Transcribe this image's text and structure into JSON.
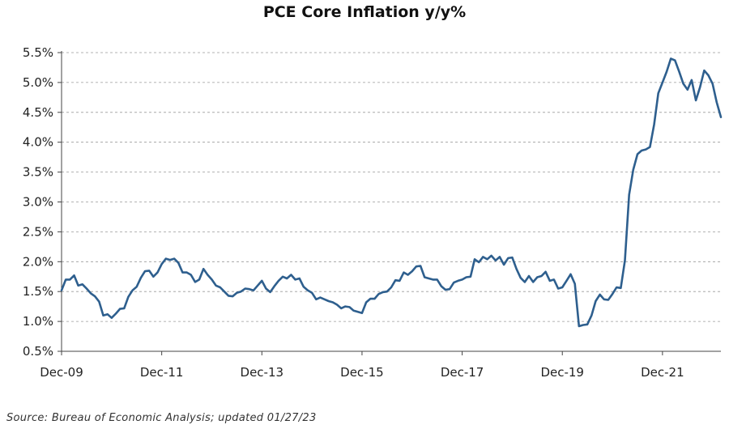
{
  "chart_data": {
    "type": "line",
    "title": "PCE Core Inflation y/y%",
    "source": "Source: Bureau of Economic Analysis; updated 01/27/23",
    "ylim": [
      0.5,
      5.5
    ],
    "yticks": [
      "0.5%",
      "1.0%",
      "1.5%",
      "2.0%",
      "2.5%",
      "3.0%",
      "3.5%",
      "4.0%",
      "4.5%",
      "5.0%",
      "5.5%"
    ],
    "xticks": [
      "Dec-09",
      "Dec-11",
      "Dec-13",
      "Dec-15",
      "Dec-17",
      "Dec-19",
      "Dec-21"
    ],
    "grid": "horizontal dashed",
    "line_color": "#2e5f8e",
    "series": [
      {
        "start": "Dec-09",
        "frequency": "monthly",
        "values": [
          1.52,
          1.7,
          1.7,
          1.77,
          1.6,
          1.62,
          1.55,
          1.47,
          1.42,
          1.33,
          1.1,
          1.12,
          1.06,
          1.13,
          1.21,
          1.22,
          1.41,
          1.52,
          1.58,
          1.73,
          1.84,
          1.85,
          1.75,
          1.82,
          1.96,
          2.05,
          2.03,
          2.05,
          1.98,
          1.82,
          1.82,
          1.78,
          1.66,
          1.7,
          1.88,
          1.78,
          1.7,
          1.6,
          1.57,
          1.5,
          1.43,
          1.42,
          1.48,
          1.5,
          1.55,
          1.54,
          1.52,
          1.6,
          1.68,
          1.55,
          1.49,
          1.59,
          1.68,
          1.75,
          1.72,
          1.78,
          1.7,
          1.72,
          1.58,
          1.52,
          1.48,
          1.37,
          1.4,
          1.37,
          1.34,
          1.32,
          1.28,
          1.22,
          1.25,
          1.24,
          1.18,
          1.16,
          1.14,
          1.32,
          1.38,
          1.38,
          1.46,
          1.49,
          1.5,
          1.57,
          1.69,
          1.68,
          1.82,
          1.78,
          1.84,
          1.92,
          1.93,
          1.74,
          1.72,
          1.7,
          1.7,
          1.59,
          1.53,
          1.54,
          1.65,
          1.68,
          1.7,
          1.74,
          1.75,
          2.04,
          1.99,
          2.08,
          2.04,
          2.1,
          2.02,
          2.08,
          1.95,
          2.06,
          2.07,
          1.88,
          1.73,
          1.66,
          1.76,
          1.66,
          1.74,
          1.76,
          1.83,
          1.68,
          1.7,
          1.55,
          1.57,
          1.68,
          1.79,
          1.63,
          0.92,
          0.94,
          0.95,
          1.1,
          1.34,
          1.45,
          1.37,
          1.36,
          1.46,
          1.57,
          1.56,
          2.02,
          3.12,
          3.54,
          3.8,
          3.86,
          3.88,
          3.92,
          4.3,
          4.82,
          5.0,
          5.18,
          5.4,
          5.37,
          5.18,
          4.98,
          4.88,
          5.04,
          4.7,
          4.92,
          5.2,
          5.12,
          4.98,
          4.67,
          4.42
        ]
      }
    ]
  }
}
